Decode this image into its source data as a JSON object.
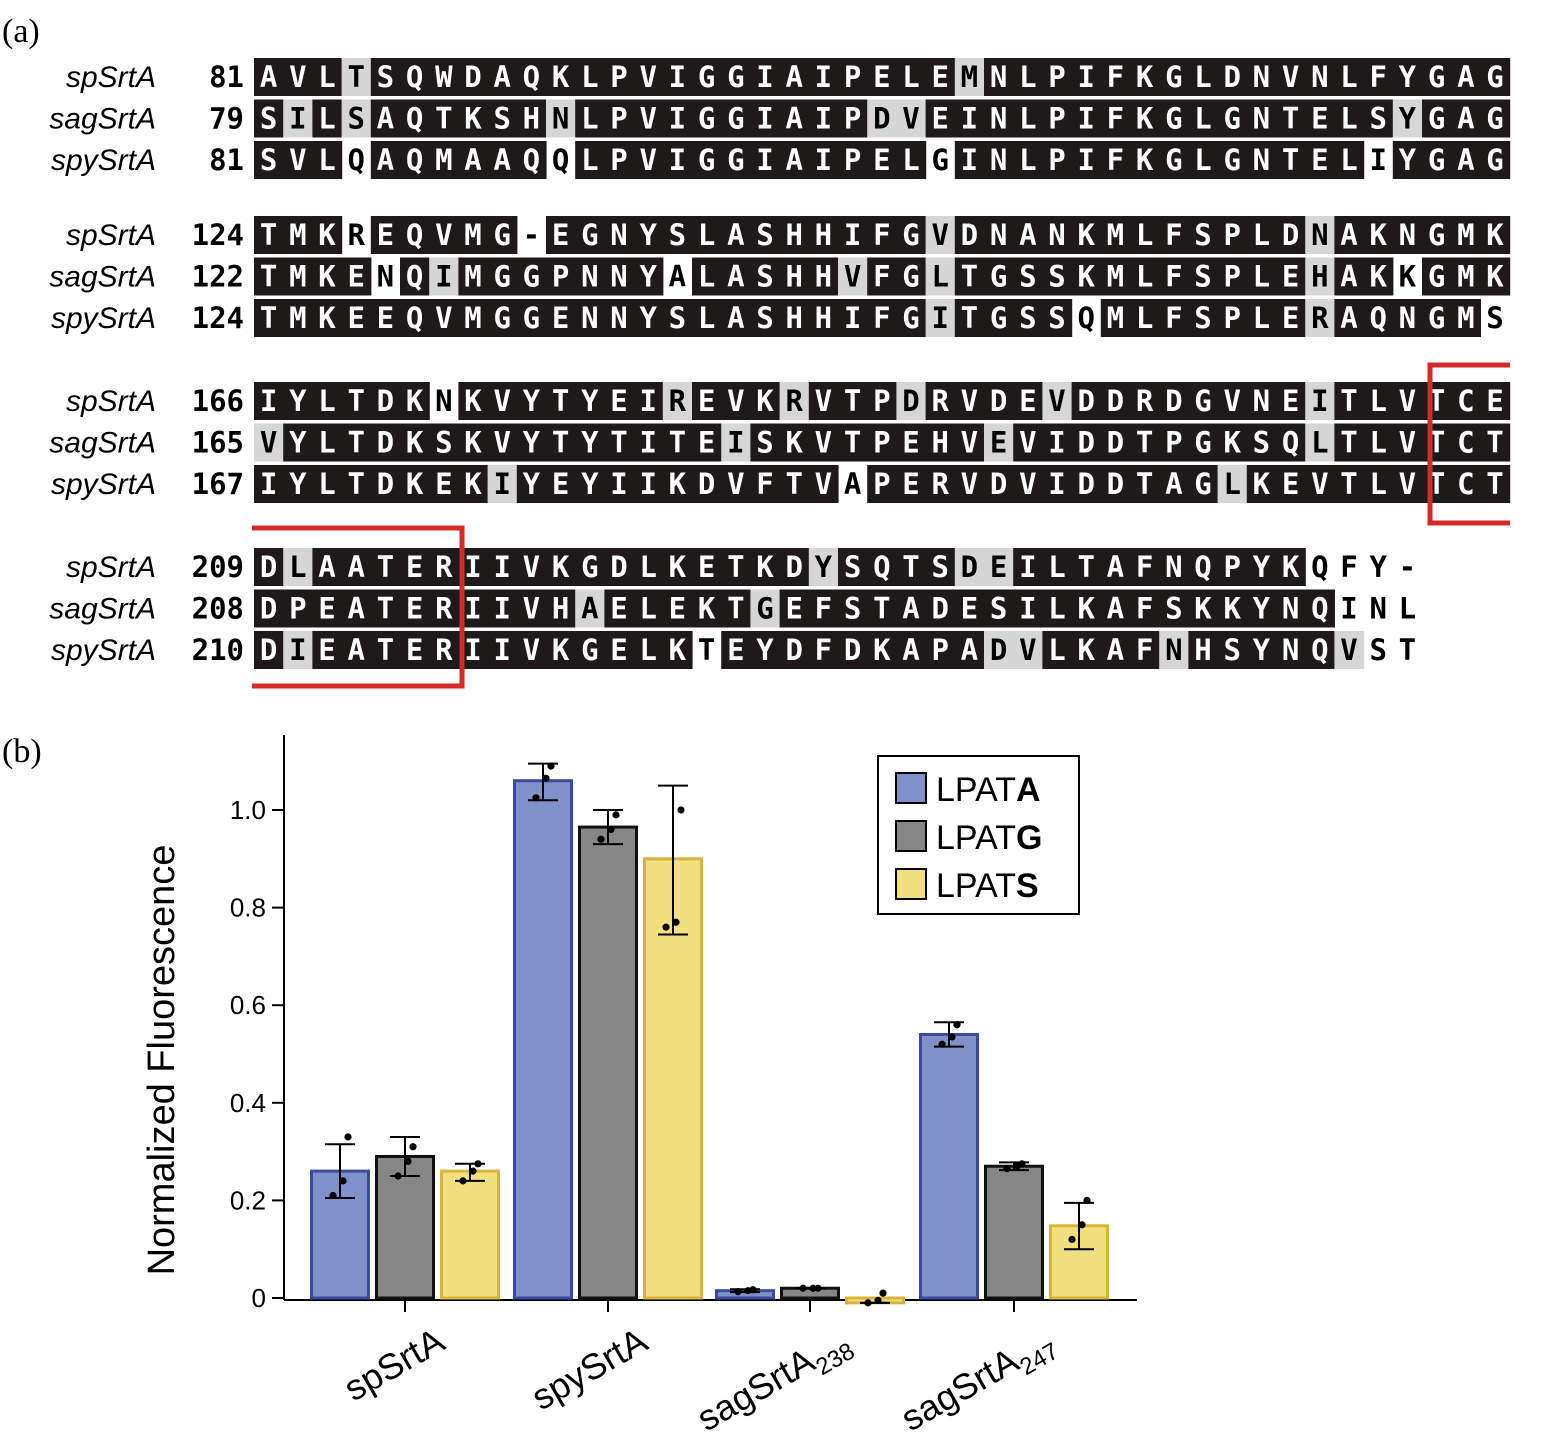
{
  "panel_a": {
    "label": "(a)",
    "colors": {
      "identical": "#1e1a1a",
      "similar": "#d6d6d6",
      "different": "#ffffff",
      "box": "#d42a2a"
    },
    "blocks": [
      {
        "rows": [
          {
            "name": "spSrtA",
            "start": "81",
            "seq": "AVLTSQWDAQKLPVIGGIAIPELEMNLPIFKGLDNVNLFYGAG",
            "shade": "BBBGBBBBBBBBBBBBBBBBBBBBGBBBBBBBBBBBBBBBBBB"
          },
          {
            "name": "sagSrtA",
            "start": "79",
            "seq": "SILSAQTKSHNLPVIGGIAIPDVEINLPIFKGLGNTELSYGAG",
            "shade": "BGBGBBBBBBGBBBBBBBBBBGGBBBBBBBBBBBBBBBBGBBB"
          },
          {
            "name": "spySrtA",
            "start": "81",
            "seq": "SVLQAQMAAQQLPVIGGIAIPELGINLPIFKGLGNTELIYGAG",
            "shade": "BBBWBBBBBBWBBBBBBBBBBBBWBBBBBBBBBBBBBBWBBBB"
          }
        ]
      },
      {
        "rows": [
          {
            "name": "spSrtA",
            "start": "124",
            "seq": "TMKREQVMG-EGNYSLASHHIFGVDNANKMLFSPLDNAKNGMK",
            "shade": "BBBWBBBBBWBBBBBBBBBBBBBGBBBBBBBBBBBBGBBBBBB"
          },
          {
            "name": "sagSrtA",
            "start": "122",
            "seq": "TMKENQIMGGPNNYALASHHVFGLTGSSKMLFSPLEHAKKGMK",
            "shade": "BBBBWBGBBBBBBBWBBBBBGBBGBBBBBBBBBBBBGBBWBBB"
          },
          {
            "name": "spySrtA",
            "start": "124",
            "seq": "TMKEEQVMGGENNYSLASHHIFGITGSSQMLFSPLERAQNGMS",
            "shade": "BBBBBBBBBBBBBBBBBBBBBBBGBBBBWBBBBBBBGBBBBBW"
          }
        ]
      },
      {
        "rows": [
          {
            "name": "spSrtA",
            "start": "166",
            "seq": "IYLTDKNKVYTYEIREVKRVTPDRVDEVDDRDGVNEITLVTCE",
            "shade": "BBBBBBWBBBBBBBGBBBGBBBGBBBBGBBBBBBBBGBBBBBB"
          },
          {
            "name": "sagSrtA",
            "start": "165",
            "seq": "VYLTDKSKVYTYTITEISKVTPEHVEVIDDTPGKSQLTLVTCT",
            "shade": "GBBBBBBBBBBBBBBBGBBBBBBBBGBBBBBBBBBBGBBBBBB"
          },
          {
            "name": "spySrtA",
            "start": "167",
            "seq": "IYLTDKEKIYEYIIKDVFTVAPERVDVIDDTAGLKEVTLVTCT",
            "shade": "BBBBBBBBGBBBBBBBBBBBWBBBBBBBBBBBBGBBBBBBBBB"
          }
        ]
      },
      {
        "rows": [
          {
            "name": "spSrtA",
            "start": "209",
            "seq": "DLAATERIIVKGDLKETKDYSQTSDEILTAFNQPYKQFY-",
            "shade": "BGBBBBBBBBBBBBBBBBBGBBBBGGBBBBBBBBBBWWWW"
          },
          {
            "name": "sagSrtA",
            "start": "208",
            "seq": "DPEATERIIVHAELEKTGEFSTADESILKAFSKKYNQINL",
            "shade": "BBBBBBBBBBBGBBBBBGBBBBBBBBBBBBBBBBBBBWWW"
          },
          {
            "name": "spySrtA",
            "start": "210",
            "seq": "DIEATERIIVKGELKTEYDFDKAPADVLKAFNHSYNQVST",
            "shade": "BGBBBBBBBBBBBBBWBBBBBBBBBGGBBBBGBBBBBGWW"
          }
        ]
      }
    ]
  },
  "panel_b": {
    "label": "(b)"
  },
  "chart_data": {
    "type": "bar",
    "ylabel": "Normalized Fluorescence",
    "xlabel": "",
    "ylim": [
      -0.02,
      1.12
    ],
    "yticks": [
      0,
      0.2,
      0.4,
      0.6,
      0.8,
      1.0
    ],
    "ytick_labels": [
      "0",
      "0.2",
      "0.4",
      "0.6",
      "0.8",
      "1.0"
    ],
    "categories": [
      {
        "main": "spSrtA",
        "sub": ""
      },
      {
        "main": "spySrtA",
        "sub": ""
      },
      {
        "main": "sagSrtA",
        "sub": "238"
      },
      {
        "main": "sagSrtA",
        "sub": "247"
      }
    ],
    "series": [
      {
        "name_prefix": "LPAT",
        "name_bold": "A",
        "fill": "#8090c8",
        "stroke": "#3b4aa0",
        "values": [
          0.26,
          1.06,
          0.015,
          0.54
        ],
        "err_low": [
          0.205,
          1.02,
          0.012,
          0.515
        ],
        "err_high": [
          0.315,
          1.095,
          0.018,
          0.565
        ],
        "points": [
          [
            0.21,
            0.24,
            0.33
          ],
          [
            1.025,
            1.065,
            1.09
          ],
          [
            0.013,
            0.015,
            0.017
          ],
          [
            0.52,
            0.535,
            0.56
          ]
        ]
      },
      {
        "name_prefix": "LPAT",
        "name_bold": "G",
        "fill": "#868686",
        "stroke": "#111111",
        "values": [
          0.29,
          0.965,
          0.02,
          0.27
        ],
        "err_low": [
          0.25,
          0.93,
          0.02,
          0.262
        ],
        "err_high": [
          0.33,
          1.0,
          0.02,
          0.278
        ],
        "points": [
          [
            0.25,
            0.28,
            0.31
          ],
          [
            0.94,
            0.96,
            0.99
          ],
          [
            0.02,
            0.02,
            0.02
          ],
          [
            0.265,
            0.27,
            0.275
          ]
        ]
      },
      {
        "name_prefix": "LPAT",
        "name_bold": "S",
        "fill": "#f2df80",
        "stroke": "#d8b43a",
        "values": [
          0.26,
          0.9,
          -0.01,
          0.148
        ],
        "err_low": [
          0.24,
          0.745,
          -0.01,
          0.1
        ],
        "err_high": [
          0.275,
          1.05,
          -0.01,
          0.195
        ],
        "points": [
          [
            0.24,
            0.26,
            0.275
          ],
          [
            0.76,
            0.77,
            1.0
          ],
          [
            -0.01,
            -0.005,
            0.01
          ],
          [
            0.12,
            0.15,
            0.2
          ]
        ]
      }
    ],
    "legend_position": "top-right"
  }
}
